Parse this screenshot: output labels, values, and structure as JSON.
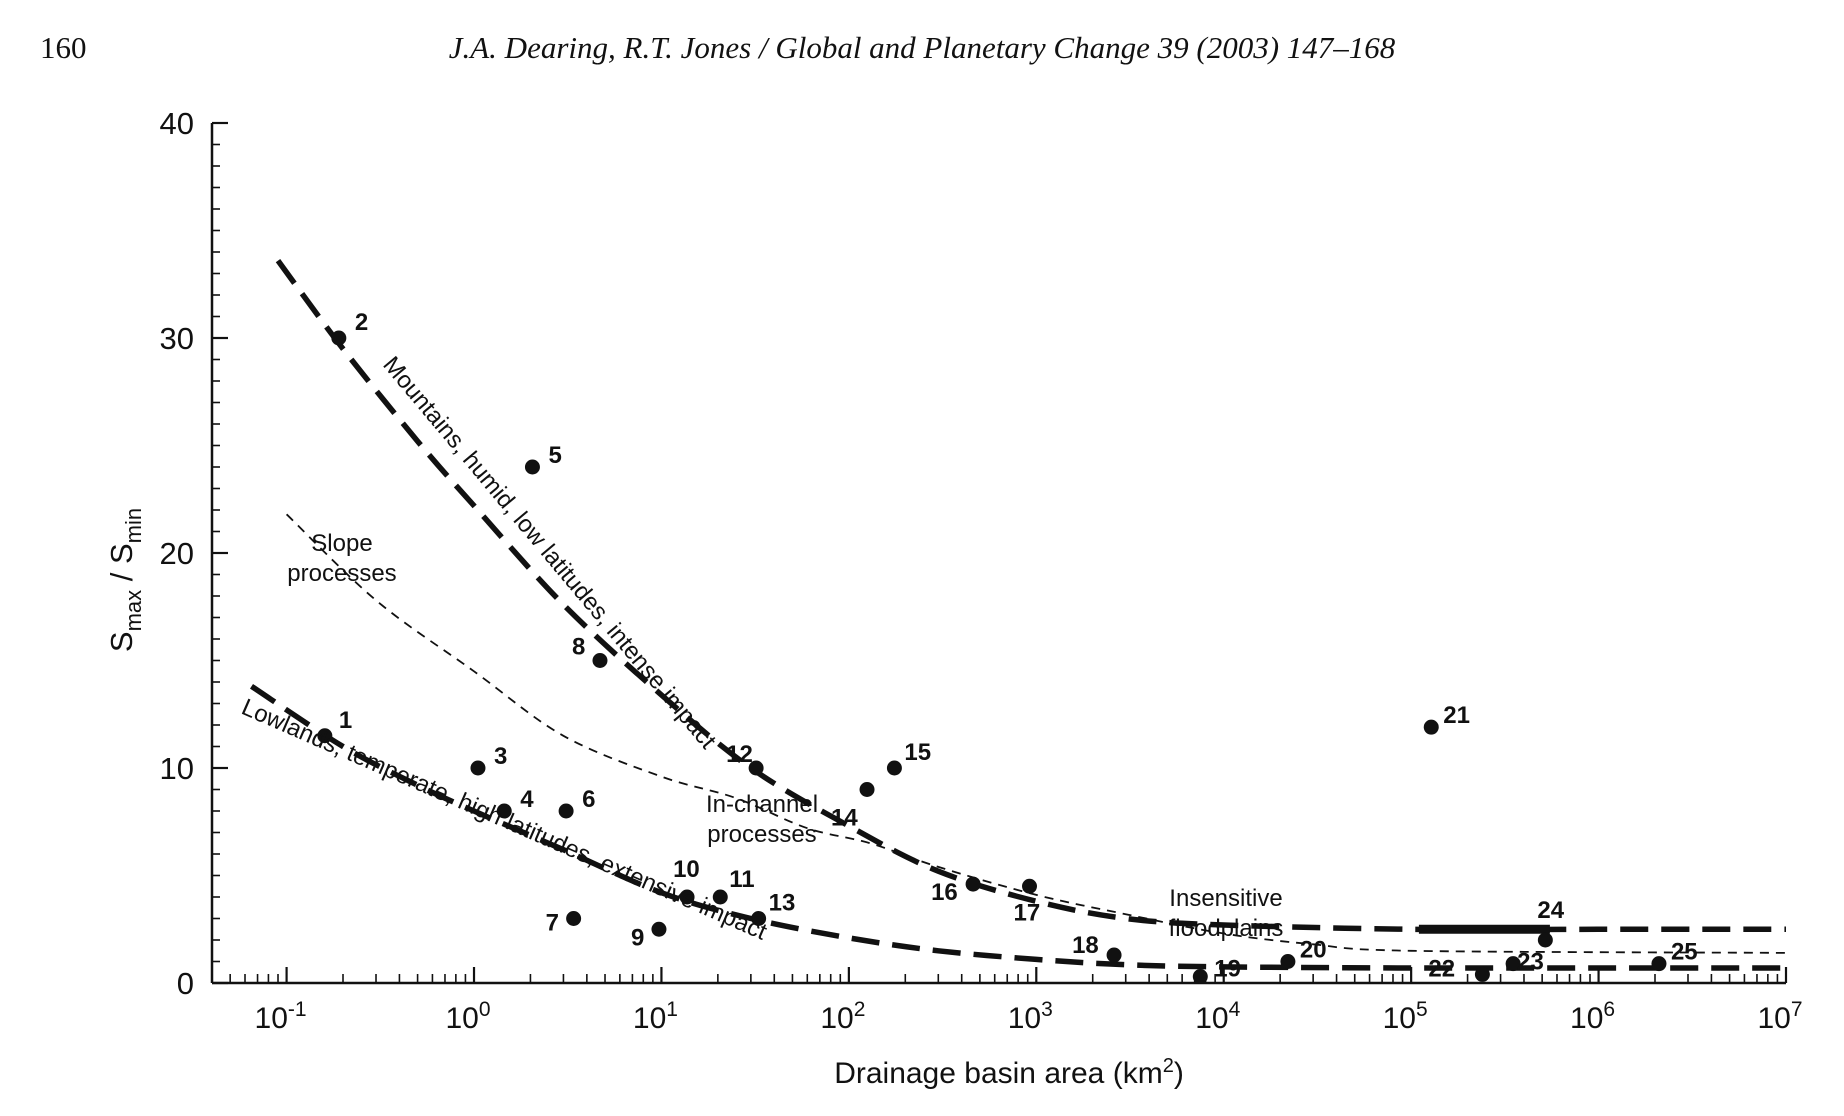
{
  "header": {
    "page_number": "160",
    "citation": "J.A. Dearing, R.T. Jones / Global and Planetary Change 39 (2003) 147–168"
  },
  "chart_data": {
    "type": "scatter",
    "title": "",
    "xlabel": "Drainage basin area (km",
    "xlabel_sup": "2",
    "xlabel_end": ")",
    "ylabel_parts": [
      "S",
      "max",
      " / S",
      "min"
    ],
    "x_scale": "log",
    "xlim": [
      0.04,
      10000000
    ],
    "ylim": [
      0,
      40
    ],
    "x_ticks": [
      {
        "v": 0.1,
        "base": "10",
        "exp": "-1"
      },
      {
        "v": 1,
        "base": "10",
        "exp": "0"
      },
      {
        "v": 10,
        "base": "10",
        "exp": "1"
      },
      {
        "v": 100,
        "base": "10",
        "exp": "2"
      },
      {
        "v": 1000,
        "base": "10",
        "exp": "3"
      },
      {
        "v": 10000,
        "base": "10",
        "exp": "4"
      },
      {
        "v": 100000,
        "base": "10",
        "exp": "5"
      },
      {
        "v": 1000000,
        "base": "10",
        "exp": "6"
      },
      {
        "v": 10000000,
        "base": "10",
        "exp": "7"
      }
    ],
    "y_ticks": [
      0,
      10,
      20,
      30,
      40
    ],
    "grid": false,
    "points": [
      {
        "label": "1",
        "x": 0.16,
        "y": 11.5
      },
      {
        "label": "2",
        "x": 0.19,
        "y": 30
      },
      {
        "label": "3",
        "x": 1.05,
        "y": 10
      },
      {
        "label": "4",
        "x": 1.45,
        "y": 8
      },
      {
        "label": "5",
        "x": 2.05,
        "y": 24
      },
      {
        "label": "6",
        "x": 3.1,
        "y": 8
      },
      {
        "label": "7",
        "x": 3.4,
        "y": 3
      },
      {
        "label": "8",
        "x": 4.7,
        "y": 15
      },
      {
        "label": "9",
        "x": 9.7,
        "y": 2.5
      },
      {
        "label": "10",
        "x": 13.7,
        "y": 4
      },
      {
        "label": "11",
        "x": 20.6,
        "y": 4
      },
      {
        "label": "12",
        "x": 32,
        "y": 10
      },
      {
        "label": "13",
        "x": 33,
        "y": 3
      },
      {
        "label": "14",
        "x": 125,
        "y": 9
      },
      {
        "label": "15",
        "x": 175,
        "y": 10
      },
      {
        "label": "16",
        "x": 460,
        "y": 4.6
      },
      {
        "label": "17",
        "x": 920,
        "y": 4.5
      },
      {
        "label": "18",
        "x": 2600,
        "y": 1.3
      },
      {
        "label": "19",
        "x": 7500,
        "y": 0.3
      },
      {
        "label": "20",
        "x": 22000,
        "y": 1.0
      },
      {
        "label": "21",
        "x": 128000,
        "y": 11.9
      },
      {
        "label": "22",
        "x": 240000,
        "y": 0.4
      },
      {
        "label": "23",
        "x": 350000,
        "y": 0.9
      },
      {
        "label": "24",
        "x": 520000,
        "y": 2.0
      },
      {
        "label": "25",
        "x": 2100000,
        "y": 0.9
      }
    ],
    "curves": [
      {
        "id": "upper-envelope",
        "style": "heavy-dashed",
        "pts": [
          [
            0.09,
            33.6
          ],
          [
            0.2,
            29.5
          ],
          [
            0.5,
            25.2
          ],
          [
            1,
            22.2
          ],
          [
            3,
            17.6
          ],
          [
            10,
            13.4
          ],
          [
            30,
            10.0
          ],
          [
            100,
            7.3
          ],
          [
            300,
            5.2
          ],
          [
            1000,
            3.8
          ],
          [
            3000,
            3.0
          ],
          [
            10000,
            2.7
          ],
          [
            100000,
            2.5
          ],
          [
            1000000,
            2.5
          ],
          [
            10000000,
            2.5
          ]
        ]
      },
      {
        "id": "lower-envelope",
        "style": "heavy-dashed",
        "pts": [
          [
            0.065,
            13.8
          ],
          [
            0.2,
            11.0
          ],
          [
            0.5,
            9.2
          ],
          [
            1,
            8.0
          ],
          [
            3,
            6.2
          ],
          [
            10,
            4.2
          ],
          [
            30,
            3.0
          ],
          [
            100,
            2.1
          ],
          [
            300,
            1.5
          ],
          [
            1000,
            1.1
          ],
          [
            3000,
            0.85
          ],
          [
            10000,
            0.75
          ],
          [
            100000,
            0.7
          ],
          [
            1000000,
            0.7
          ],
          [
            10000000,
            0.7
          ]
        ]
      },
      {
        "id": "process-divide",
        "style": "thin-dashed",
        "pts": [
          [
            0.1,
            21.8
          ],
          [
            0.3,
            17.8
          ],
          [
            1,
            14.5
          ],
          [
            3,
            11.5
          ],
          [
            10,
            9.6
          ],
          [
            25,
            8.6
          ],
          [
            60,
            7.2
          ],
          [
            130,
            6.5
          ],
          [
            300,
            5.4
          ],
          [
            1000,
            4.1
          ],
          [
            3000,
            3.2
          ],
          [
            10000,
            2.3
          ],
          [
            30000,
            1.8
          ],
          [
            100000,
            1.5
          ],
          [
            10000000,
            1.4
          ]
        ]
      }
    ],
    "solid_segment": {
      "x": [
        110000,
        550000
      ],
      "y": 2.5
    },
    "annotations": [
      {
        "text": "Mountains, humid, low latitudes, intense impact",
        "kind": "curve-label"
      },
      {
        "text": "Lowlands, temperate, high latitudes, extensive impact",
        "kind": "curve-label"
      },
      {
        "text": "Slope",
        "kind": "region"
      },
      {
        "text": "processes",
        "kind": "region"
      },
      {
        "text": "In-channel",
        "kind": "region"
      },
      {
        "text": "processes",
        "kind": "region"
      },
      {
        "text": "Insensitive",
        "kind": "region"
      },
      {
        "text": "floodplains",
        "kind": "region"
      }
    ]
  }
}
